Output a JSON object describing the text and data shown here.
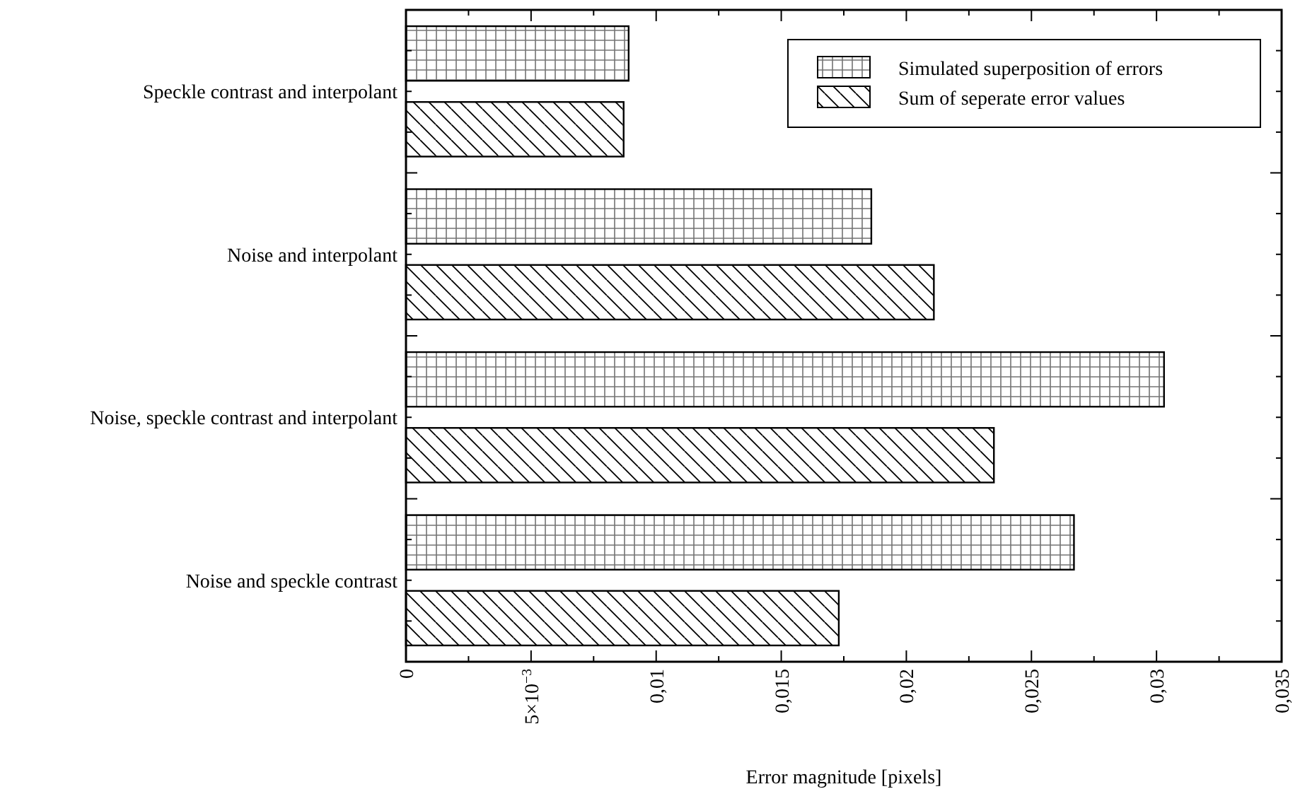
{
  "chart_data": {
    "type": "bar",
    "orientation": "horizontal",
    "xlabel": "Error magnitude [pixels]",
    "categories": [
      "Speckle contrast and interpolant",
      "Noise and interpolant",
      "Noise, speckle contrast and interpolant",
      "Noise and speckle contrast"
    ],
    "series": [
      {
        "name": "Simulated superposition of errors",
        "color": "#000000",
        "values": [
          0.0089,
          0.0186,
          0.0303,
          0.0267
        ]
      },
      {
        "name": "Sum of seperate error values",
        "color": "#000000",
        "values": [
          0.0087,
          0.0211,
          0.0235,
          0.0173
        ]
      }
    ],
    "xlim": [
      0,
      0.035
    ],
    "xticks": [
      0,
      {
        "value": 0.005,
        "label": "5×10$^{−3}$"
      },
      {
        "value": 0.01,
        "label": "0,01"
      },
      {
        "value": 0.015,
        "label": "0,015"
      },
      {
        "value": 0.02,
        "label": "0,02"
      },
      {
        "value": 0.025,
        "label": "0,025"
      },
      {
        "value": 0.03,
        "label": "0,03"
      },
      {
        "value": 0.035,
        "label": "0,035"
      }
    ],
    "legend": "top right"
  }
}
